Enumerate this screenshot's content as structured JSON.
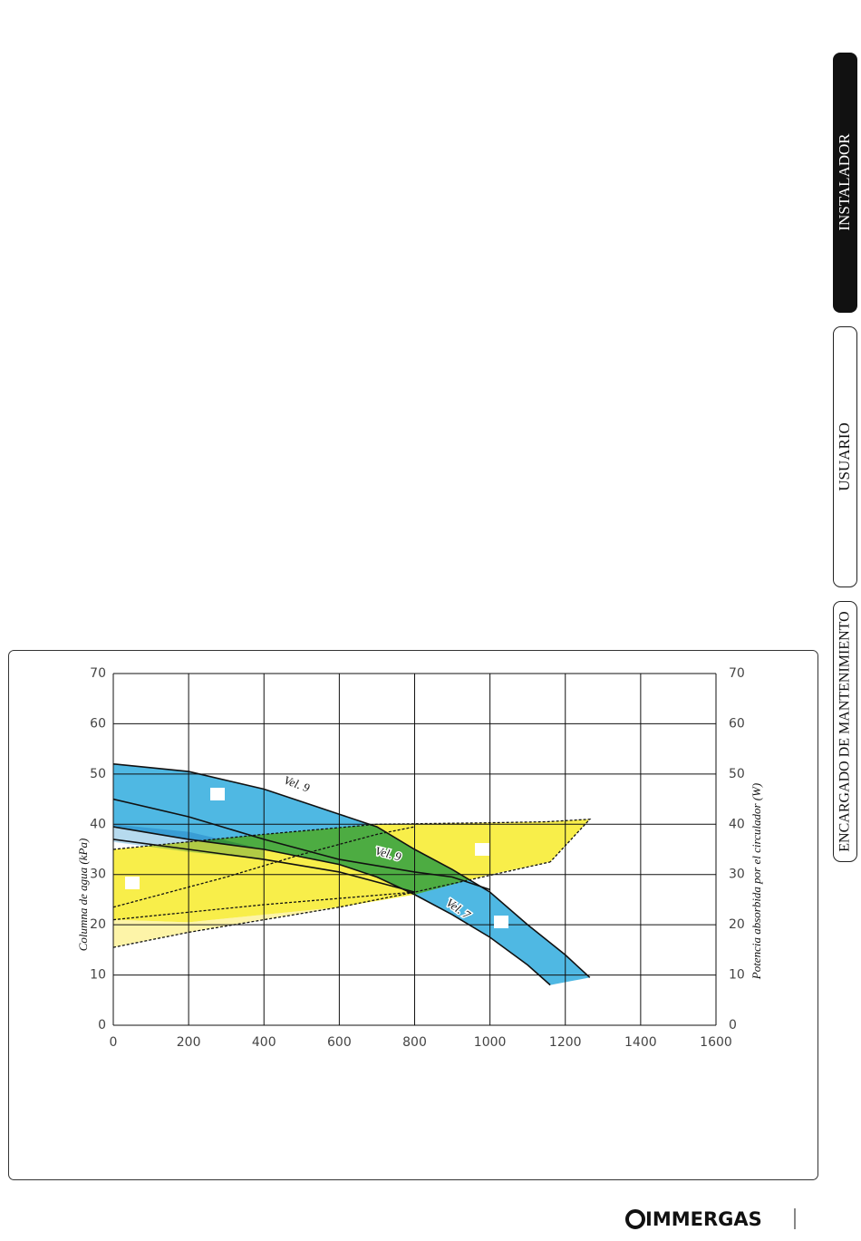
{
  "tabs": [
    "INSTALADOR",
    "USUARIO",
    "ENCARGADO DE MANTENIMIENTO"
  ],
  "logo": "IMMERGAS",
  "chart_data": {
    "type": "area-line",
    "y_label": "Columna de agua (kPa)",
    "y2_label": "Potencia absorbida por el circulador (W)",
    "xlim": [
      0,
      1600
    ],
    "xticks": [
      0,
      200,
      400,
      600,
      800,
      1000,
      1200,
      1400,
      1600
    ],
    "ylim": [
      0,
      70
    ],
    "yticks": [
      0,
      10,
      20,
      30,
      40,
      50,
      60,
      70
    ],
    "y2lim": [
      0,
      70
    ],
    "y2ticks": [
      0,
      10,
      20,
      30,
      40,
      50,
      60,
      70
    ],
    "grid": true,
    "areas": [
      {
        "color": "#fdf4a8",
        "axis": "y2",
        "x": [
          0,
          200,
          400,
          600,
          400,
          200,
          0
        ],
        "y": [
          21,
          20.5,
          22,
          23.5,
          21,
          18.5,
          15.5
        ]
      },
      {
        "color": "#f8ee4a",
        "axis": "y2",
        "x": [
          0,
          400,
          700,
          1000,
          1150,
          1265,
          1160,
          1000,
          800,
          600,
          400,
          200,
          0
        ],
        "y": [
          35,
          38,
          40,
          40.3,
          40.5,
          41,
          32.5,
          30,
          26,
          23.5,
          22,
          20.5,
          21
        ]
      },
      {
        "color": "#aed6ec",
        "axis": "y",
        "x": [
          0,
          200,
          400,
          400,
          200,
          0
        ],
        "y": [
          40,
          38.5,
          35,
          33,
          34.5,
          36.5
        ]
      },
      {
        "color": "#3bb0e0",
        "axis": "y",
        "x": [
          0,
          200,
          400,
          600,
          700,
          800,
          900,
          1000,
          1100,
          1200,
          1265,
          1160,
          1100,
          1000,
          900,
          800,
          700,
          600,
          400,
          200,
          0
        ],
        "y": [
          52,
          50.5,
          47,
          42,
          39.5,
          35,
          31,
          26.5,
          20,
          14,
          9.5,
          8,
          12,
          17.5,
          22,
          26,
          29.5,
          32,
          35,
          37,
          39.5
        ]
      }
    ],
    "lines": [
      {
        "dashed": false,
        "axis": "y",
        "x": [
          0,
          200,
          400,
          600,
          700,
          800,
          900,
          1000,
          1100,
          1200,
          1265
        ],
        "y": [
          52,
          50.5,
          47,
          42,
          39.5,
          35,
          31,
          26.5,
          20,
          14,
          9.5
        ]
      },
      {
        "dashed": false,
        "axis": "y",
        "x": [
          0,
          200,
          400,
          600,
          800,
          900,
          1000
        ],
        "y": [
          45,
          41.5,
          37,
          33,
          30.5,
          29.5,
          27
        ]
      },
      {
        "dashed": false,
        "axis": "y",
        "x": [
          0,
          200,
          400,
          600,
          700,
          800,
          900,
          1000,
          1100,
          1160
        ],
        "y": [
          39.5,
          37,
          35,
          32,
          29.5,
          26,
          22,
          17.5,
          12,
          8
        ]
      },
      {
        "dashed": false,
        "axis": "y",
        "x": [
          0,
          200,
          400,
          600,
          800
        ],
        "y": [
          37,
          35,
          33,
          30.5,
          26.5
        ]
      },
      {
        "dashed": true,
        "axis": "y2",
        "x": [
          0,
          400,
          700,
          1000,
          1150,
          1265,
          1160
        ],
        "y": [
          35,
          38,
          40,
          40.3,
          40.5,
          41,
          32.5
        ]
      },
      {
        "dashed": true,
        "axis": "y2",
        "x": [
          0,
          300,
          500,
          700,
          800
        ],
        "y": [
          23.5,
          29.5,
          34,
          38,
          39.5
        ]
      },
      {
        "dashed": true,
        "axis": "y2",
        "x": [
          0,
          400,
          800,
          1160
        ],
        "y": [
          21,
          24,
          26.5,
          32.5
        ]
      },
      {
        "dashed": true,
        "axis": "y2",
        "x": [
          0,
          200,
          400,
          600,
          800
        ],
        "y": [
          15.5,
          18.5,
          21,
          23.5,
          26.5
        ]
      }
    ],
    "annotations": [
      {
        "text": "Vel. 9",
        "x": 486,
        "y": 47.8
      },
      {
        "text": "Vel. 9",
        "x": 729,
        "y": 33.9
      },
      {
        "text": "Vel. 7",
        "x": 914,
        "y": 23
      }
    ]
  }
}
